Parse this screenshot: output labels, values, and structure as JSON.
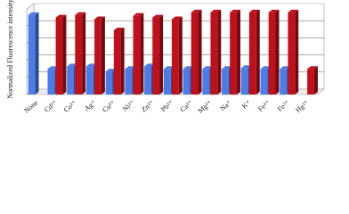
{
  "chart_data": {
    "type": "bar3d",
    "y_label": "Normalized Fluorescence intensity",
    "categories": [
      "None",
      "Cd²⁺",
      "Co²⁺",
      "Ag⁺",
      "Cu²⁺",
      "Ni²⁺",
      "Zn²⁺",
      "Pb²⁺",
      "Ca²⁺",
      "Mg²⁺",
      "Na⁺",
      "K⁺",
      "Fe²⁺",
      "Fe³⁺",
      "Hg²⁺"
    ],
    "series": [
      {
        "color": "#4a7de8",
        "values": [
          0.93,
          0.3,
          0.33,
          0.33,
          0.27,
          0.3,
          0.33,
          0.3,
          0.3,
          0.3,
          0.3,
          0.31,
          0.3,
          0.3,
          null
        ]
      },
      {
        "color": "#c0101a",
        "values": [
          null,
          0.9,
          0.93,
          0.88,
          0.75,
          0.92,
          0.9,
          0.88,
          0.96,
          0.96,
          0.96,
          0.96,
          0.96,
          0.96,
          0.3
        ]
      }
    ],
    "ylim": [
      0,
      1
    ],
    "grid": true
  }
}
